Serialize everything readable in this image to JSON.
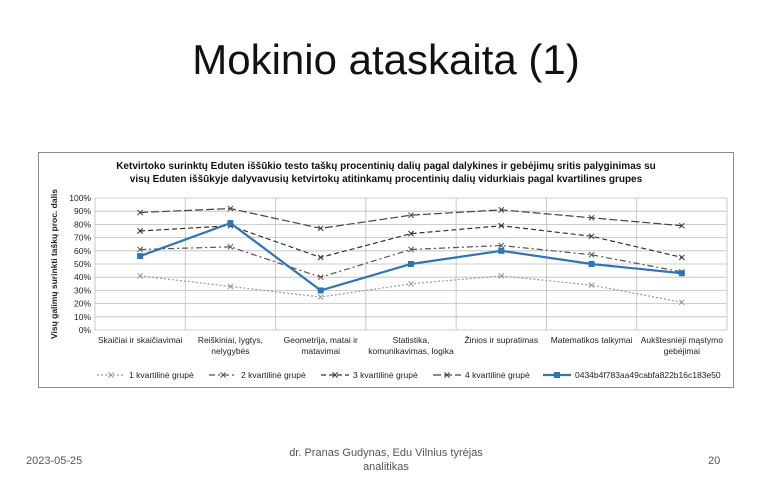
{
  "slide": {
    "title": "Mokinio ataskaita (1)",
    "footer": {
      "date": "2023-05-25",
      "author_line1": "dr. Pranas Gudynas, Edu Vilnius tyrėjas",
      "author_line2": "analitikas",
      "page": "20"
    }
  },
  "chart_data": {
    "type": "line",
    "title_line1": "Ketvirtoko surinktų Eduten iššūkio testo taškų procentinių dalių pagal dalykines ir gebėjimų sritis palyginimas su",
    "title_line2": "visų Eduten iššūkyje dalyvavusių ketvirtokų atitinkamų procentinių dalių vidurkiais pagal kvartilines grupes",
    "ylabel": "Visų galimų surinkti taškų proc. dalis",
    "ylim": [
      0,
      100
    ],
    "yticks": [
      "0%",
      "10%",
      "20%",
      "30%",
      "40%",
      "50%",
      "60%",
      "70%",
      "80%",
      "90%",
      "100%"
    ],
    "categories": [
      [
        "Skaičiai ir skaičiavimai"
      ],
      [
        "Reiškiniai, lygtys,",
        "nelygybės"
      ],
      [
        "Geometrija, matai ir",
        "matavimai"
      ],
      [
        "Statistika,",
        "komunikavimas, logika"
      ],
      [
        "Žinios ir supratimas"
      ],
      [
        "Matematikos taikymai"
      ],
      [
        "Aukštesnieji mąstymo",
        "gebėjimai"
      ]
    ],
    "grid": true,
    "legend_position": "bottom",
    "series": [
      {
        "name": "1 kvartilinė grupė",
        "values": [
          41,
          33,
          25,
          35,
          41,
          34,
          21
        ],
        "color": "#9a9a9a",
        "style": "dotted"
      },
      {
        "name": "2 kvartilinė grupė",
        "values": [
          61,
          63,
          40,
          61,
          64,
          57,
          44
        ],
        "color": "#555555",
        "style": "dashdot"
      },
      {
        "name": "3 kvartilinė grupė",
        "values": [
          75,
          79,
          55,
          73,
          79,
          71,
          55
        ],
        "color": "#333333",
        "style": "dashed"
      },
      {
        "name": "4 kvartilinė grupė",
        "values": [
          89,
          92,
          77,
          87,
          91,
          85,
          79
        ],
        "color": "#444444",
        "style": "longdash"
      },
      {
        "name": "0434b4f783aa49cabfa822b16c183e50",
        "values": [
          56,
          81,
          30,
          50,
          60,
          50,
          43
        ],
        "color": "#2e75b6",
        "style": "solid"
      }
    ]
  }
}
